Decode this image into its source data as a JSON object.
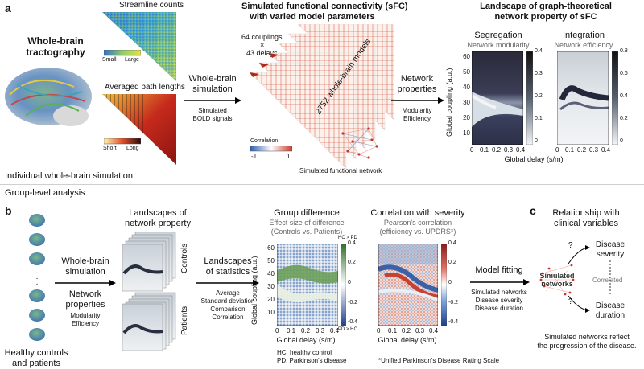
{
  "panels": {
    "a": "a",
    "b": "b",
    "c": "c"
  },
  "tractography": {
    "title_line1": "Whole-brain",
    "title_line2": "tractography"
  },
  "streamline": {
    "title": "Streamline counts",
    "scale_low": "Small",
    "scale_high": "Large"
  },
  "pathlen": {
    "title": "Averaged path lengths",
    "scale_low": "Short",
    "scale_high": "Long"
  },
  "simulation_arrow": {
    "line1": "Whole-brain",
    "line2": "simulation",
    "sub1": "Simulated",
    "sub2": "BOLD signals"
  },
  "sfc": {
    "title_line1": "Simulated functional connectivity (sFC)",
    "title_line2": "with varied model parameters",
    "couplings": "64 couplings",
    "times": "×",
    "delays": "43 delays",
    "models": "2752 whole-brain models",
    "corr_label": "Correlation",
    "corr_min": "-1",
    "corr_max": "1",
    "network_label": "Simulated functional network"
  },
  "network_arrow": {
    "line1": "Network",
    "line2": "properties",
    "sub1": "Modularity",
    "sub2": "Efficiency"
  },
  "landscape": {
    "title_line1": "Landscape of graph-theoretical",
    "title_line2": "network property of sFC",
    "seg_title": "Segregation",
    "seg_sub": "Network modularity",
    "int_title": "Integration",
    "int_sub": "Network efficiency",
    "ylabel": "Global coupling (a.u.)",
    "xlabel": "Global delay (s/m)",
    "yticks": [
      "60",
      "50",
      "40",
      "30",
      "20",
      "10"
    ],
    "xticks": [
      "0",
      "0.1",
      "0.2",
      "0.3",
      "0.4"
    ],
    "seg_cbar": [
      "0.4",
      "0.3",
      "0.2",
      "0.1",
      "0"
    ],
    "int_cbar": [
      "0.8",
      "0.6",
      "0.4",
      "0.2",
      "0"
    ]
  },
  "individual_label": "Individual whole-brain simulation",
  "group_label": "Group-level analysis",
  "brains": {
    "ellipsis": "·\n·\n·",
    "caption_line1": "Healthy controls",
    "caption_line2": "and patients"
  },
  "sim2_arrow": {
    "line1": "Whole-brain",
    "line2": "simulation",
    "line3": "Network",
    "line4": "properties",
    "sub1": "Modularity",
    "sub2": "Efficiency"
  },
  "stack": {
    "title_line1": "Landscapes of",
    "title_line2": "network property",
    "controls": "Controls",
    "patients": "Patients"
  },
  "stats_arrow": {
    "line1": "Landscapes",
    "line2": "of statistics",
    "sub1": "Average",
    "sub2": "Standard deviation",
    "sub3": "Comparison",
    "sub4": "Correlation"
  },
  "groupdiff": {
    "title": "Group difference",
    "sub1": "Effect size of difference",
    "sub2": "(Controls vs. Patients)",
    "cbar_top": "HC > PD",
    "cbar_bottom": "PD > HC",
    "cbar_ticks": [
      "0.4",
      "0.2",
      "0",
      "-0.2",
      "-0.4"
    ],
    "ylabel": "Global coupling (a.u.)",
    "xlabel": "Global delay (s/m)",
    "yticks": [
      "60",
      "50",
      "40",
      "30",
      "20",
      "10"
    ],
    "xticks": [
      "0",
      "0.1",
      "0.2",
      "0.3",
      "0.4"
    ],
    "note1": "HC: healthy control",
    "note2": "PD: Parkinson's disease"
  },
  "severity": {
    "title": "Correlation with severity",
    "sub1": "Pearson's correlation",
    "sub2": "(efficiency vs. UPDRS*)",
    "cbar_ticks": [
      "0.4",
      "0.2",
      "0",
      "-0.2",
      "-0.4"
    ],
    "xlabel": "Global delay (s/m)",
    "xticks": [
      "0",
      "0.1",
      "0.2",
      "0.3",
      "0.4"
    ],
    "note": "*Unified Parkinson's Disease Rating Scale"
  },
  "fitting_arrow": {
    "line1": "Model fitting",
    "sub1": "Simulated networks",
    "sub2": "Disease severity",
    "sub3": "Disease duration"
  },
  "clinical": {
    "title_line1": "Relationship with",
    "title_line2": "clinical variables",
    "node": "Simulated\nnetworks",
    "severity1": "Disease",
    "severity2": "severity",
    "duration1": "Disease",
    "duration2": "duration",
    "correlated": "Correlated",
    "q": "?",
    "caption_line1": "Simulated networks reflect",
    "caption_line2": "the progression of the disease."
  },
  "colors": {
    "accent": "#000000",
    "divider": "#cfcfcf",
    "red": "#c83a2a",
    "blue": "#2f5fb0",
    "green": "#3f8a3a"
  }
}
